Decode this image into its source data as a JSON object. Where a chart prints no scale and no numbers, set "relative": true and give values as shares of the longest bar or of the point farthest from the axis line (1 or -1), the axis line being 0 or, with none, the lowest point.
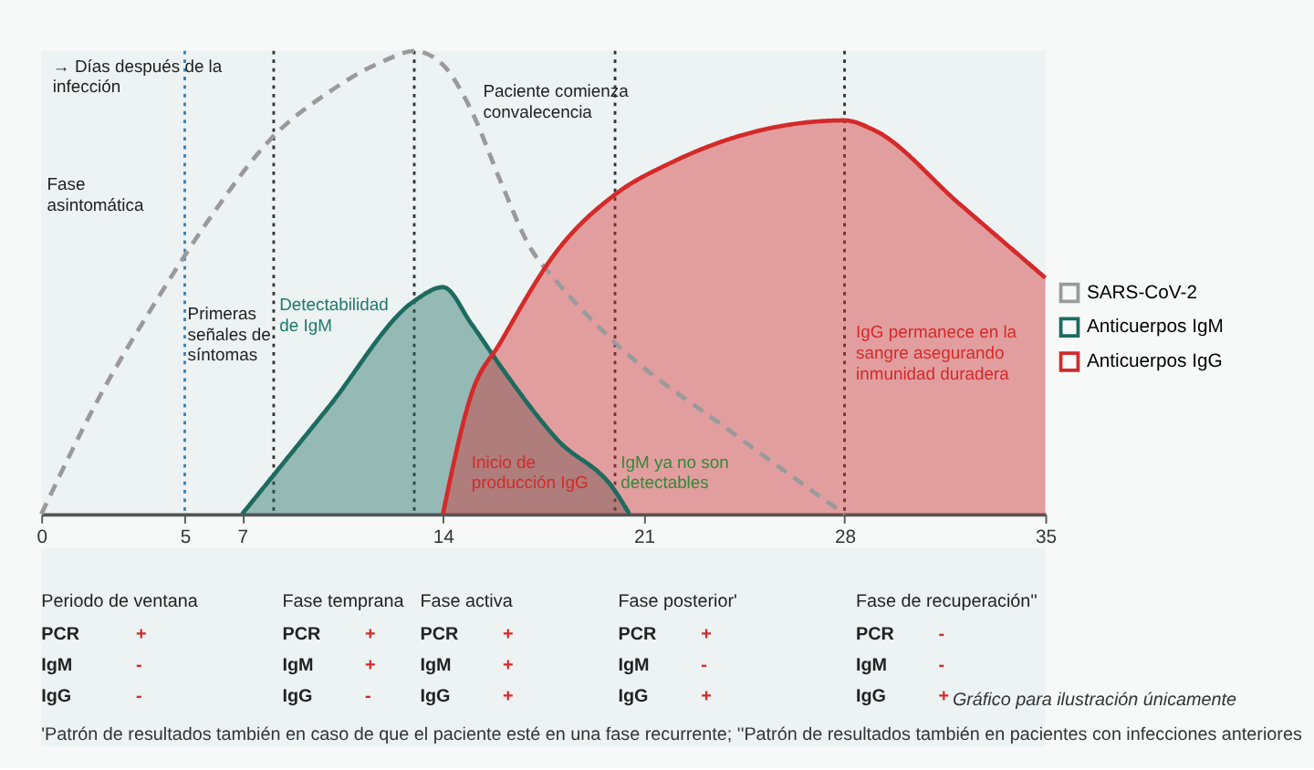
{
  "chart_data": [
    {
      "type": "area",
      "relative": true,
      "xlim": [
        0,
        35
      ],
      "xticks": [
        0,
        5,
        7,
        14,
        21,
        28,
        35
      ],
      "grid": false,
      "legend": "right",
      "series": [
        {
          "name": "SARS-CoV-2",
          "type": "line",
          "line_style": "dashed",
          "color": "#9a9a9a",
          "x": [
            0,
            2,
            4,
            6,
            8,
            10,
            12,
            13,
            14,
            15,
            16,
            17,
            18,
            20,
            24,
            28
          ],
          "values": [
            0,
            0.25,
            0.46,
            0.65,
            0.81,
            0.91,
            0.98,
            1.0,
            0.97,
            0.87,
            0.72,
            0.58,
            0.5,
            0.37,
            0.18,
            0
          ]
        },
        {
          "name": "Anticuerpos IgM",
          "type": "area",
          "color": "#1d6b5f",
          "x": [
            7,
            10,
            13,
            14,
            15,
            16,
            18,
            20,
            20.5
          ],
          "values": [
            0,
            0.23,
            0.46,
            0.49,
            0.41,
            0.32,
            0.16,
            0.05,
            0
          ]
        },
        {
          "name": "Anticuerpos IgG",
          "type": "area",
          "color": "#d42a2a",
          "x": [
            14,
            15,
            16,
            18,
            20,
            22,
            24,
            26,
            28,
            29,
            32,
            35
          ],
          "values": [
            0,
            0.26,
            0.37,
            0.57,
            0.69,
            0.76,
            0.81,
            0.84,
            0.85,
            0.83,
            0.67,
            0.51
          ]
        }
      ],
      "ref_lines": [
        {
          "axis": "x",
          "value": 5,
          "color": "#3a7fb0",
          "line_style": "dotted"
        },
        {
          "axis": "x",
          "value": 8.1,
          "color": "#333333",
          "line_style": "dotted"
        },
        {
          "axis": "x",
          "value": 13,
          "color": "#333333",
          "line_style": "dotted"
        },
        {
          "axis": "x",
          "value": 20,
          "color": "#333333",
          "line_style": "dotted"
        },
        {
          "axis": "x",
          "value": 28,
          "color": "#333333",
          "line_style": "dotted"
        }
      ],
      "annotations": [
        "→ Días después de la\n    infección",
        "Paciente comienza\nconvalecencia",
        "Fase\nasintomática",
        "Primeras\nseñales de\nsíntomas",
        "Detectabilidad\nde IgM",
        "Inicio de\nproducción IgG",
        "IgM ya no son\ndetectables",
        "IgG permanece en la\nsangre asegurando\ninmunidad duradera"
      ]
    },
    {
      "type": "other",
      "annotations": [
        "Periodo de ventana",
        "Fase temprana",
        "Fase activa",
        "Fase posterior'",
        "Fase de recuperación''",
        "PCR",
        "+",
        "IgM",
        "-",
        "IgG",
        "-",
        "PCR",
        "+",
        "IgM",
        "+",
        "IgG",
        "-",
        "PCR",
        "+",
        "IgM",
        "+",
        "IgG",
        "+",
        "PCR",
        "+",
        "IgM",
        "-",
        "IgG",
        "+",
        "PCR",
        "-",
        "IgM",
        "-",
        "IgG",
        "+",
        "Gráfico para ilustración únicamente",
        "'Patrón de resultados también en caso de que el paciente esté en una fase recurrente; ''Patrón de resultados también en pacientes con infecciones anteriores"
      ]
    }
  ]
}
